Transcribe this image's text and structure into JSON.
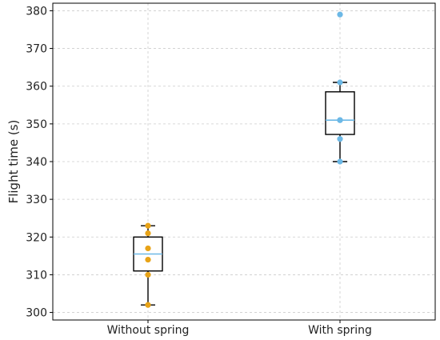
{
  "chart_data": {
    "type": "box",
    "categories": [
      "Without spring",
      "With spring"
    ],
    "xlabel": "",
    "ylabel": "Flight time (s)",
    "ylim": [
      298,
      382
    ],
    "yticks": [
      300,
      310,
      320,
      330,
      340,
      350,
      360,
      370,
      380
    ],
    "grid": true,
    "boxes": [
      {
        "category": "Without spring",
        "whisker_low": 302,
        "q1": 311,
        "median": 315.5,
        "q3": 320,
        "whisker_high": 323,
        "points": [
          302,
          310,
          314,
          317,
          321,
          323
        ],
        "point_color": "#E8A317"
      },
      {
        "category": "With spring",
        "whisker_low": 340,
        "q1": 347.2,
        "median": 351,
        "q3": 358.5,
        "whisker_high": 361,
        "points": [
          340,
          346,
          351,
          351,
          361,
          379
        ],
        "point_color": "#6CB8E6"
      }
    ],
    "median_color": "#6CB8E6"
  }
}
